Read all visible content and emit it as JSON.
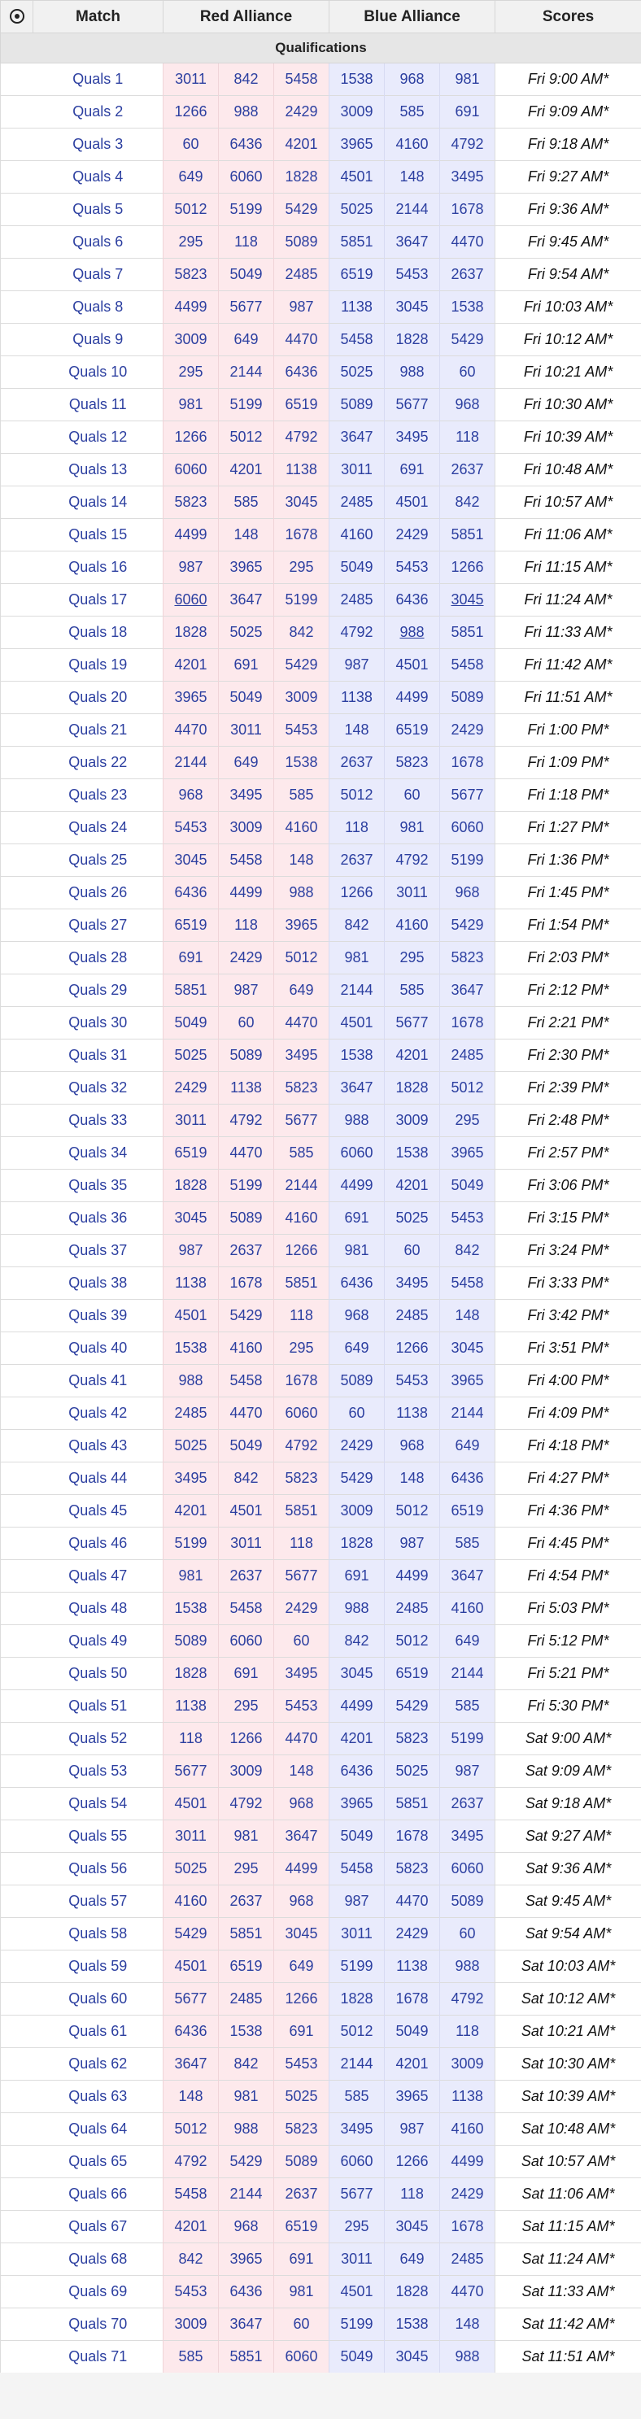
{
  "header": {
    "icon": "record-circle-icon",
    "match": "Match",
    "red": "Red Alliance",
    "blue": "Blue Alliance",
    "scores": "Scores"
  },
  "section_title": "Qualifications",
  "colors": {
    "red_bg": "#fde9ec",
    "blue_bg": "#e9ebfc",
    "link": "#2c3fa0"
  },
  "matches": [
    {
      "label": "Quals 1",
      "red": [
        "3011",
        "842",
        "5458"
      ],
      "blue": [
        "1538",
        "968",
        "981"
      ],
      "time": "Fri 9:00 AM*"
    },
    {
      "label": "Quals 2",
      "red": [
        "1266",
        "988",
        "2429"
      ],
      "blue": [
        "3009",
        "585",
        "691"
      ],
      "time": "Fri 9:09 AM*"
    },
    {
      "label": "Quals 3",
      "red": [
        "60",
        "6436",
        "4201"
      ],
      "blue": [
        "3965",
        "4160",
        "4792"
      ],
      "time": "Fri 9:18 AM*"
    },
    {
      "label": "Quals 4",
      "red": [
        "649",
        "6060",
        "1828"
      ],
      "blue": [
        "4501",
        "148",
        "3495"
      ],
      "time": "Fri 9:27 AM*"
    },
    {
      "label": "Quals 5",
      "red": [
        "5012",
        "5199",
        "5429"
      ],
      "blue": [
        "5025",
        "2144",
        "1678"
      ],
      "time": "Fri 9:36 AM*"
    },
    {
      "label": "Quals 6",
      "red": [
        "295",
        "118",
        "5089"
      ],
      "blue": [
        "5851",
        "3647",
        "4470"
      ],
      "time": "Fri 9:45 AM*"
    },
    {
      "label": "Quals 7",
      "red": [
        "5823",
        "5049",
        "2485"
      ],
      "blue": [
        "6519",
        "5453",
        "2637"
      ],
      "time": "Fri 9:54 AM*"
    },
    {
      "label": "Quals 8",
      "red": [
        "4499",
        "5677",
        "987"
      ],
      "blue": [
        "1138",
        "3045",
        "1538"
      ],
      "time": "Fri 10:03 AM*"
    },
    {
      "label": "Quals 9",
      "red": [
        "3009",
        "649",
        "4470"
      ],
      "blue": [
        "5458",
        "1828",
        "5429"
      ],
      "time": "Fri 10:12 AM*"
    },
    {
      "label": "Quals 10",
      "red": [
        "295",
        "2144",
        "6436"
      ],
      "blue": [
        "5025",
        "988",
        "60"
      ],
      "time": "Fri 10:21 AM*"
    },
    {
      "label": "Quals 11",
      "red": [
        "981",
        "5199",
        "6519"
      ],
      "blue": [
        "5089",
        "5677",
        "968"
      ],
      "time": "Fri 10:30 AM*"
    },
    {
      "label": "Quals 12",
      "red": [
        "1266",
        "5012",
        "4792"
      ],
      "blue": [
        "3647",
        "3495",
        "118"
      ],
      "time": "Fri 10:39 AM*"
    },
    {
      "label": "Quals 13",
      "red": [
        "6060",
        "4201",
        "1138"
      ],
      "blue": [
        "3011",
        "691",
        "2637"
      ],
      "time": "Fri 10:48 AM*"
    },
    {
      "label": "Quals 14",
      "red": [
        "5823",
        "585",
        "3045"
      ],
      "blue": [
        "2485",
        "4501",
        "842"
      ],
      "time": "Fri 10:57 AM*"
    },
    {
      "label": "Quals 15",
      "red": [
        "4499",
        "148",
        "1678"
      ],
      "blue": [
        "4160",
        "2429",
        "5851"
      ],
      "time": "Fri 11:06 AM*"
    },
    {
      "label": "Quals 16",
      "red": [
        "987",
        "3965",
        "295"
      ],
      "blue": [
        "5049",
        "5453",
        "1266"
      ],
      "time": "Fri 11:15 AM*"
    },
    {
      "label": "Quals 17",
      "red": [
        "6060",
        "3647",
        "5199"
      ],
      "blue": [
        "2485",
        "6436",
        "3045"
      ],
      "time": "Fri 11:24 AM*"
    },
    {
      "label": "Quals 18",
      "red": [
        "1828",
        "5025",
        "842"
      ],
      "blue": [
        "4792",
        "988",
        "5851"
      ],
      "time": "Fri 11:33 AM*"
    },
    {
      "label": "Quals 19",
      "red": [
        "4201",
        "691",
        "5429"
      ],
      "blue": [
        "987",
        "4501",
        "5458"
      ],
      "time": "Fri 11:42 AM*"
    },
    {
      "label": "Quals 20",
      "red": [
        "3965",
        "5049",
        "3009"
      ],
      "blue": [
        "1138",
        "4499",
        "5089"
      ],
      "time": "Fri 11:51 AM*"
    },
    {
      "label": "Quals 21",
      "red": [
        "4470",
        "3011",
        "5453"
      ],
      "blue": [
        "148",
        "6519",
        "2429"
      ],
      "time": "Fri 1:00 PM*"
    },
    {
      "label": "Quals 22",
      "red": [
        "2144",
        "649",
        "1538"
      ],
      "blue": [
        "2637",
        "5823",
        "1678"
      ],
      "time": "Fri 1:09 PM*"
    },
    {
      "label": "Quals 23",
      "red": [
        "968",
        "3495",
        "585"
      ],
      "blue": [
        "5012",
        "60",
        "5677"
      ],
      "time": "Fri 1:18 PM*"
    },
    {
      "label": "Quals 24",
      "red": [
        "5453",
        "3009",
        "4160"
      ],
      "blue": [
        "118",
        "981",
        "6060"
      ],
      "time": "Fri 1:27 PM*"
    },
    {
      "label": "Quals 25",
      "red": [
        "3045",
        "5458",
        "148"
      ],
      "blue": [
        "2637",
        "4792",
        "5199"
      ],
      "time": "Fri 1:36 PM*"
    },
    {
      "label": "Quals 26",
      "red": [
        "6436",
        "4499",
        "988"
      ],
      "blue": [
        "1266",
        "3011",
        "968"
      ],
      "time": "Fri 1:45 PM*"
    },
    {
      "label": "Quals 27",
      "red": [
        "6519",
        "118",
        "3965"
      ],
      "blue": [
        "842",
        "4160",
        "5429"
      ],
      "time": "Fri 1:54 PM*"
    },
    {
      "label": "Quals 28",
      "red": [
        "691",
        "2429",
        "5012"
      ],
      "blue": [
        "981",
        "295",
        "5823"
      ],
      "time": "Fri 2:03 PM*"
    },
    {
      "label": "Quals 29",
      "red": [
        "5851",
        "987",
        "649"
      ],
      "blue": [
        "2144",
        "585",
        "3647"
      ],
      "time": "Fri 2:12 PM*"
    },
    {
      "label": "Quals 30",
      "red": [
        "5049",
        "60",
        "4470"
      ],
      "blue": [
        "4501",
        "5677",
        "1678"
      ],
      "time": "Fri 2:21 PM*"
    },
    {
      "label": "Quals 31",
      "red": [
        "5025",
        "5089",
        "3495"
      ],
      "blue": [
        "1538",
        "4201",
        "2485"
      ],
      "time": "Fri 2:30 PM*"
    },
    {
      "label": "Quals 32",
      "red": [
        "2429",
        "1138",
        "5823"
      ],
      "blue": [
        "3647",
        "1828",
        "5012"
      ],
      "time": "Fri 2:39 PM*"
    },
    {
      "label": "Quals 33",
      "red": [
        "3011",
        "4792",
        "5677"
      ],
      "blue": [
        "988",
        "3009",
        "295"
      ],
      "time": "Fri 2:48 PM*"
    },
    {
      "label": "Quals 34",
      "red": [
        "6519",
        "4470",
        "585"
      ],
      "blue": [
        "6060",
        "1538",
        "3965"
      ],
      "time": "Fri 2:57 PM*"
    },
    {
      "label": "Quals 35",
      "red": [
        "1828",
        "5199",
        "2144"
      ],
      "blue": [
        "4499",
        "4201",
        "5049"
      ],
      "time": "Fri 3:06 PM*"
    },
    {
      "label": "Quals 36",
      "red": [
        "3045",
        "5089",
        "4160"
      ],
      "blue": [
        "691",
        "5025",
        "5453"
      ],
      "time": "Fri 3:15 PM*"
    },
    {
      "label": "Quals 37",
      "red": [
        "987",
        "2637",
        "1266"
      ],
      "blue": [
        "981",
        "60",
        "842"
      ],
      "time": "Fri 3:24 PM*"
    },
    {
      "label": "Quals 38",
      "red": [
        "1138",
        "1678",
        "5851"
      ],
      "blue": [
        "6436",
        "3495",
        "5458"
      ],
      "time": "Fri 3:33 PM*"
    },
    {
      "label": "Quals 39",
      "red": [
        "4501",
        "5429",
        "118"
      ],
      "blue": [
        "968",
        "2485",
        "148"
      ],
      "time": "Fri 3:42 PM*"
    },
    {
      "label": "Quals 40",
      "red": [
        "1538",
        "4160",
        "295"
      ],
      "blue": [
        "649",
        "1266",
        "3045"
      ],
      "time": "Fri 3:51 PM*"
    },
    {
      "label": "Quals 41",
      "red": [
        "988",
        "5458",
        "1678"
      ],
      "blue": [
        "5089",
        "5453",
        "3965"
      ],
      "time": "Fri 4:00 PM*"
    },
    {
      "label": "Quals 42",
      "red": [
        "2485",
        "4470",
        "6060"
      ],
      "blue": [
        "60",
        "1138",
        "2144"
      ],
      "time": "Fri 4:09 PM*"
    },
    {
      "label": "Quals 43",
      "red": [
        "5025",
        "5049",
        "4792"
      ],
      "blue": [
        "2429",
        "968",
        "649"
      ],
      "time": "Fri 4:18 PM*"
    },
    {
      "label": "Quals 44",
      "red": [
        "3495",
        "842",
        "5823"
      ],
      "blue": [
        "5429",
        "148",
        "6436"
      ],
      "time": "Fri 4:27 PM*"
    },
    {
      "label": "Quals 45",
      "red": [
        "4201",
        "4501",
        "5851"
      ],
      "blue": [
        "3009",
        "5012",
        "6519"
      ],
      "time": "Fri 4:36 PM*"
    },
    {
      "label": "Quals 46",
      "red": [
        "5199",
        "3011",
        "118"
      ],
      "blue": [
        "1828",
        "987",
        "585"
      ],
      "time": "Fri 4:45 PM*"
    },
    {
      "label": "Quals 47",
      "red": [
        "981",
        "2637",
        "5677"
      ],
      "blue": [
        "691",
        "4499",
        "3647"
      ],
      "time": "Fri 4:54 PM*"
    },
    {
      "label": "Quals 48",
      "red": [
        "1538",
        "5458",
        "2429"
      ],
      "blue": [
        "988",
        "2485",
        "4160"
      ],
      "time": "Fri 5:03 PM*"
    },
    {
      "label": "Quals 49",
      "red": [
        "5089",
        "6060",
        "60"
      ],
      "blue": [
        "842",
        "5012",
        "649"
      ],
      "time": "Fri 5:12 PM*"
    },
    {
      "label": "Quals 50",
      "red": [
        "1828",
        "691",
        "3495"
      ],
      "blue": [
        "3045",
        "6519",
        "2144"
      ],
      "time": "Fri 5:21 PM*"
    },
    {
      "label": "Quals 51",
      "red": [
        "1138",
        "295",
        "5453"
      ],
      "blue": [
        "4499",
        "5429",
        "585"
      ],
      "time": "Fri 5:30 PM*"
    },
    {
      "label": "Quals 52",
      "red": [
        "118",
        "1266",
        "4470"
      ],
      "blue": [
        "4201",
        "5823",
        "5199"
      ],
      "time": "Sat 9:00 AM*"
    },
    {
      "label": "Quals 53",
      "red": [
        "5677",
        "3009",
        "148"
      ],
      "blue": [
        "6436",
        "5025",
        "987"
      ],
      "time": "Sat 9:09 AM*"
    },
    {
      "label": "Quals 54",
      "red": [
        "4501",
        "4792",
        "968"
      ],
      "blue": [
        "3965",
        "5851",
        "2637"
      ],
      "time": "Sat 9:18 AM*"
    },
    {
      "label": "Quals 55",
      "red": [
        "3011",
        "981",
        "3647"
      ],
      "blue": [
        "5049",
        "1678",
        "3495"
      ],
      "time": "Sat 9:27 AM*"
    },
    {
      "label": "Quals 56",
      "red": [
        "5025",
        "295",
        "4499"
      ],
      "blue": [
        "5458",
        "5823",
        "6060"
      ],
      "time": "Sat 9:36 AM*"
    },
    {
      "label": "Quals 57",
      "red": [
        "4160",
        "2637",
        "968"
      ],
      "blue": [
        "987",
        "4470",
        "5089"
      ],
      "time": "Sat 9:45 AM*"
    },
    {
      "label": "Quals 58",
      "red": [
        "5429",
        "5851",
        "3045"
      ],
      "blue": [
        "3011",
        "2429",
        "60"
      ],
      "time": "Sat 9:54 AM*"
    },
    {
      "label": "Quals 59",
      "red": [
        "4501",
        "6519",
        "649"
      ],
      "blue": [
        "5199",
        "1138",
        "988"
      ],
      "time": "Sat 10:03 AM*"
    },
    {
      "label": "Quals 60",
      "red": [
        "5677",
        "2485",
        "1266"
      ],
      "blue": [
        "1828",
        "1678",
        "4792"
      ],
      "time": "Sat 10:12 AM*"
    },
    {
      "label": "Quals 61",
      "red": [
        "6436",
        "1538",
        "691"
      ],
      "blue": [
        "5012",
        "5049",
        "118"
      ],
      "time": "Sat 10:21 AM*"
    },
    {
      "label": "Quals 62",
      "red": [
        "3647",
        "842",
        "5453"
      ],
      "blue": [
        "2144",
        "4201",
        "3009"
      ],
      "time": "Sat 10:30 AM*"
    },
    {
      "label": "Quals 63",
      "red": [
        "148",
        "981",
        "5025"
      ],
      "blue": [
        "585",
        "3965",
        "1138"
      ],
      "time": "Sat 10:39 AM*"
    },
    {
      "label": "Quals 64",
      "red": [
        "5012",
        "988",
        "5823"
      ],
      "blue": [
        "3495",
        "987",
        "4160"
      ],
      "time": "Sat 10:48 AM*"
    },
    {
      "label": "Quals 65",
      "red": [
        "4792",
        "5429",
        "5089"
      ],
      "blue": [
        "6060",
        "1266",
        "4499"
      ],
      "time": "Sat 10:57 AM*"
    },
    {
      "label": "Quals 66",
      "red": [
        "5458",
        "2144",
        "2637"
      ],
      "blue": [
        "5677",
        "118",
        "2429"
      ],
      "time": "Sat 11:06 AM*"
    },
    {
      "label": "Quals 67",
      "red": [
        "4201",
        "968",
        "6519"
      ],
      "blue": [
        "295",
        "3045",
        "1678"
      ],
      "time": "Sat 11:15 AM*"
    },
    {
      "label": "Quals 68",
      "red": [
        "842",
        "3965",
        "691"
      ],
      "blue": [
        "3011",
        "649",
        "2485"
      ],
      "time": "Sat 11:24 AM*"
    },
    {
      "label": "Quals 69",
      "red": [
        "5453",
        "6436",
        "981"
      ],
      "blue": [
        "4501",
        "1828",
        "4470"
      ],
      "time": "Sat 11:33 AM*"
    },
    {
      "label": "Quals 70",
      "red": [
        "3009",
        "3647",
        "60"
      ],
      "blue": [
        "5199",
        "1538",
        "148"
      ],
      "time": "Sat 11:42 AM*"
    },
    {
      "label": "Quals 71",
      "red": [
        "585",
        "5851",
        "6060"
      ],
      "blue": [
        "5049",
        "3045",
        "988"
      ],
      "time": "Sat 11:51 AM*"
    }
  ]
}
